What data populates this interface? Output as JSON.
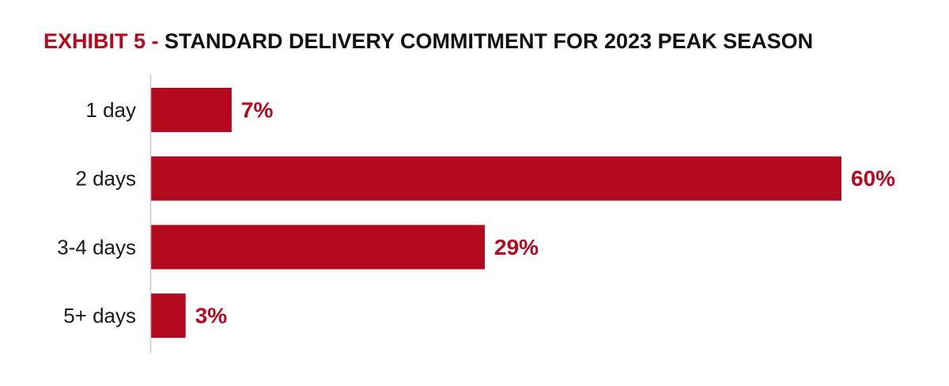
{
  "title": {
    "prefix": "EXHIBIT 5 - ",
    "main": "STANDARD DELIVERY COMMITMENT FOR 2023 PEAK SEASON"
  },
  "colors": {
    "bar": "#b5091f",
    "value_label": "#b5091f",
    "title_prefix": "#b5091f",
    "title_main": "#111111",
    "axis_line": "#c8c8c8"
  },
  "chart_data": {
    "type": "bar",
    "orientation": "horizontal",
    "title": "EXHIBIT 5 - STANDARD DELIVERY COMMITMENT FOR 2023 PEAK SEASON",
    "categories": [
      "1 day",
      "2 days",
      "3-4 days",
      "5+ days"
    ],
    "values": [
      7,
      60,
      29,
      3
    ],
    "value_labels": [
      "7%",
      "60%",
      "29%",
      "3%"
    ],
    "xlabel": "",
    "ylabel": "",
    "xlim": [
      0,
      60
    ],
    "grid": false,
    "legend": "none"
  }
}
